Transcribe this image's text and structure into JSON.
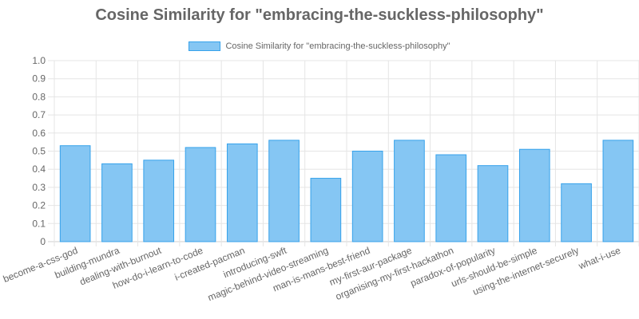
{
  "chart_data": {
    "type": "bar",
    "title": "Cosine Similarity for \"embracing-the-suckless-philosophy\"",
    "categories": [
      "become-a-css-god",
      "building-mundra",
      "dealing-with-burnout",
      "how-do-i-learn-to-code",
      "i-created-pacman",
      "introducing-swft",
      "magic-behind-video-streaming",
      "man-is-mans-best-friend",
      "my-first-aur-package",
      "organising-my-first-hackathon",
      "paradox-of-popularity",
      "urls-should-be-simple",
      "using-the-internet-securely",
      "what-i-use"
    ],
    "series": [
      {
        "name": "Cosine Similarity for \"embracing-the-suckless-philosophy\"",
        "values": [
          0.53,
          0.43,
          0.45,
          0.52,
          0.54,
          0.56,
          0.35,
          0.5,
          0.56,
          0.48,
          0.42,
          0.51,
          0.32,
          0.56
        ]
      }
    ],
    "ylim": [
      0,
      1
    ],
    "yticks": [
      "0",
      "0.1",
      "0.2",
      "0.3",
      "0.4",
      "0.5",
      "0.6",
      "0.7",
      "0.8",
      "0.9",
      "1.0"
    ],
    "grid": true,
    "legend_position": "top",
    "colors": {
      "bar_fill": "#85c6f3",
      "bar_border": "#36a2eb",
      "grid": "#e5e5e5",
      "text": "#666666"
    }
  }
}
